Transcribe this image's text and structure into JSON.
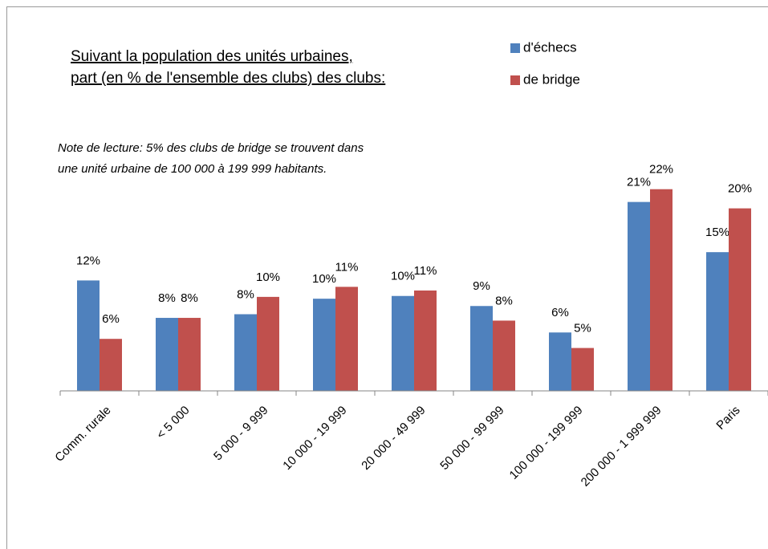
{
  "chart_data": {
    "type": "bar",
    "title": [
      "Suivant la population des unités urbaines,",
      "part (en % de l'ensemble des clubs) des clubs:"
    ],
    "annotation": [
      "Note de lecture: 5% des clubs de bridge se trouvent dans",
      "une unité urbaine de 100 000 à 199 999 habitants."
    ],
    "categories": [
      "Comm. rurale",
      "< 5 000",
      "5 000 - 9 999",
      "10 000 - 19 999",
      "20 000 - 49 999",
      "50 000 - 99 999",
      "100 000 - 199 999",
      "200 000 - 1 999 999",
      "Paris"
    ],
    "series": [
      {
        "name": "d'échecs",
        "color": "#4f81bd",
        "values": [
          12.1,
          8.0,
          8.4,
          10.1,
          10.4,
          9.3,
          6.4,
          20.7,
          15.2
        ],
        "value_labels": [
          "12%",
          "8%",
          "8%",
          "10%",
          "10%",
          "9%",
          "6%",
          "21%",
          "15%"
        ]
      },
      {
        "name": "de bridge",
        "color": "#c0504d",
        "values": [
          5.7,
          8.0,
          10.3,
          11.4,
          11.0,
          7.7,
          4.7,
          22.1,
          20.0
        ],
        "value_labels": [
          "6%",
          "8%",
          "10%",
          "11%",
          "11%",
          "8%",
          "5%",
          "22%",
          "20%"
        ]
      }
    ],
    "ylim": [
      0,
      27
    ]
  }
}
